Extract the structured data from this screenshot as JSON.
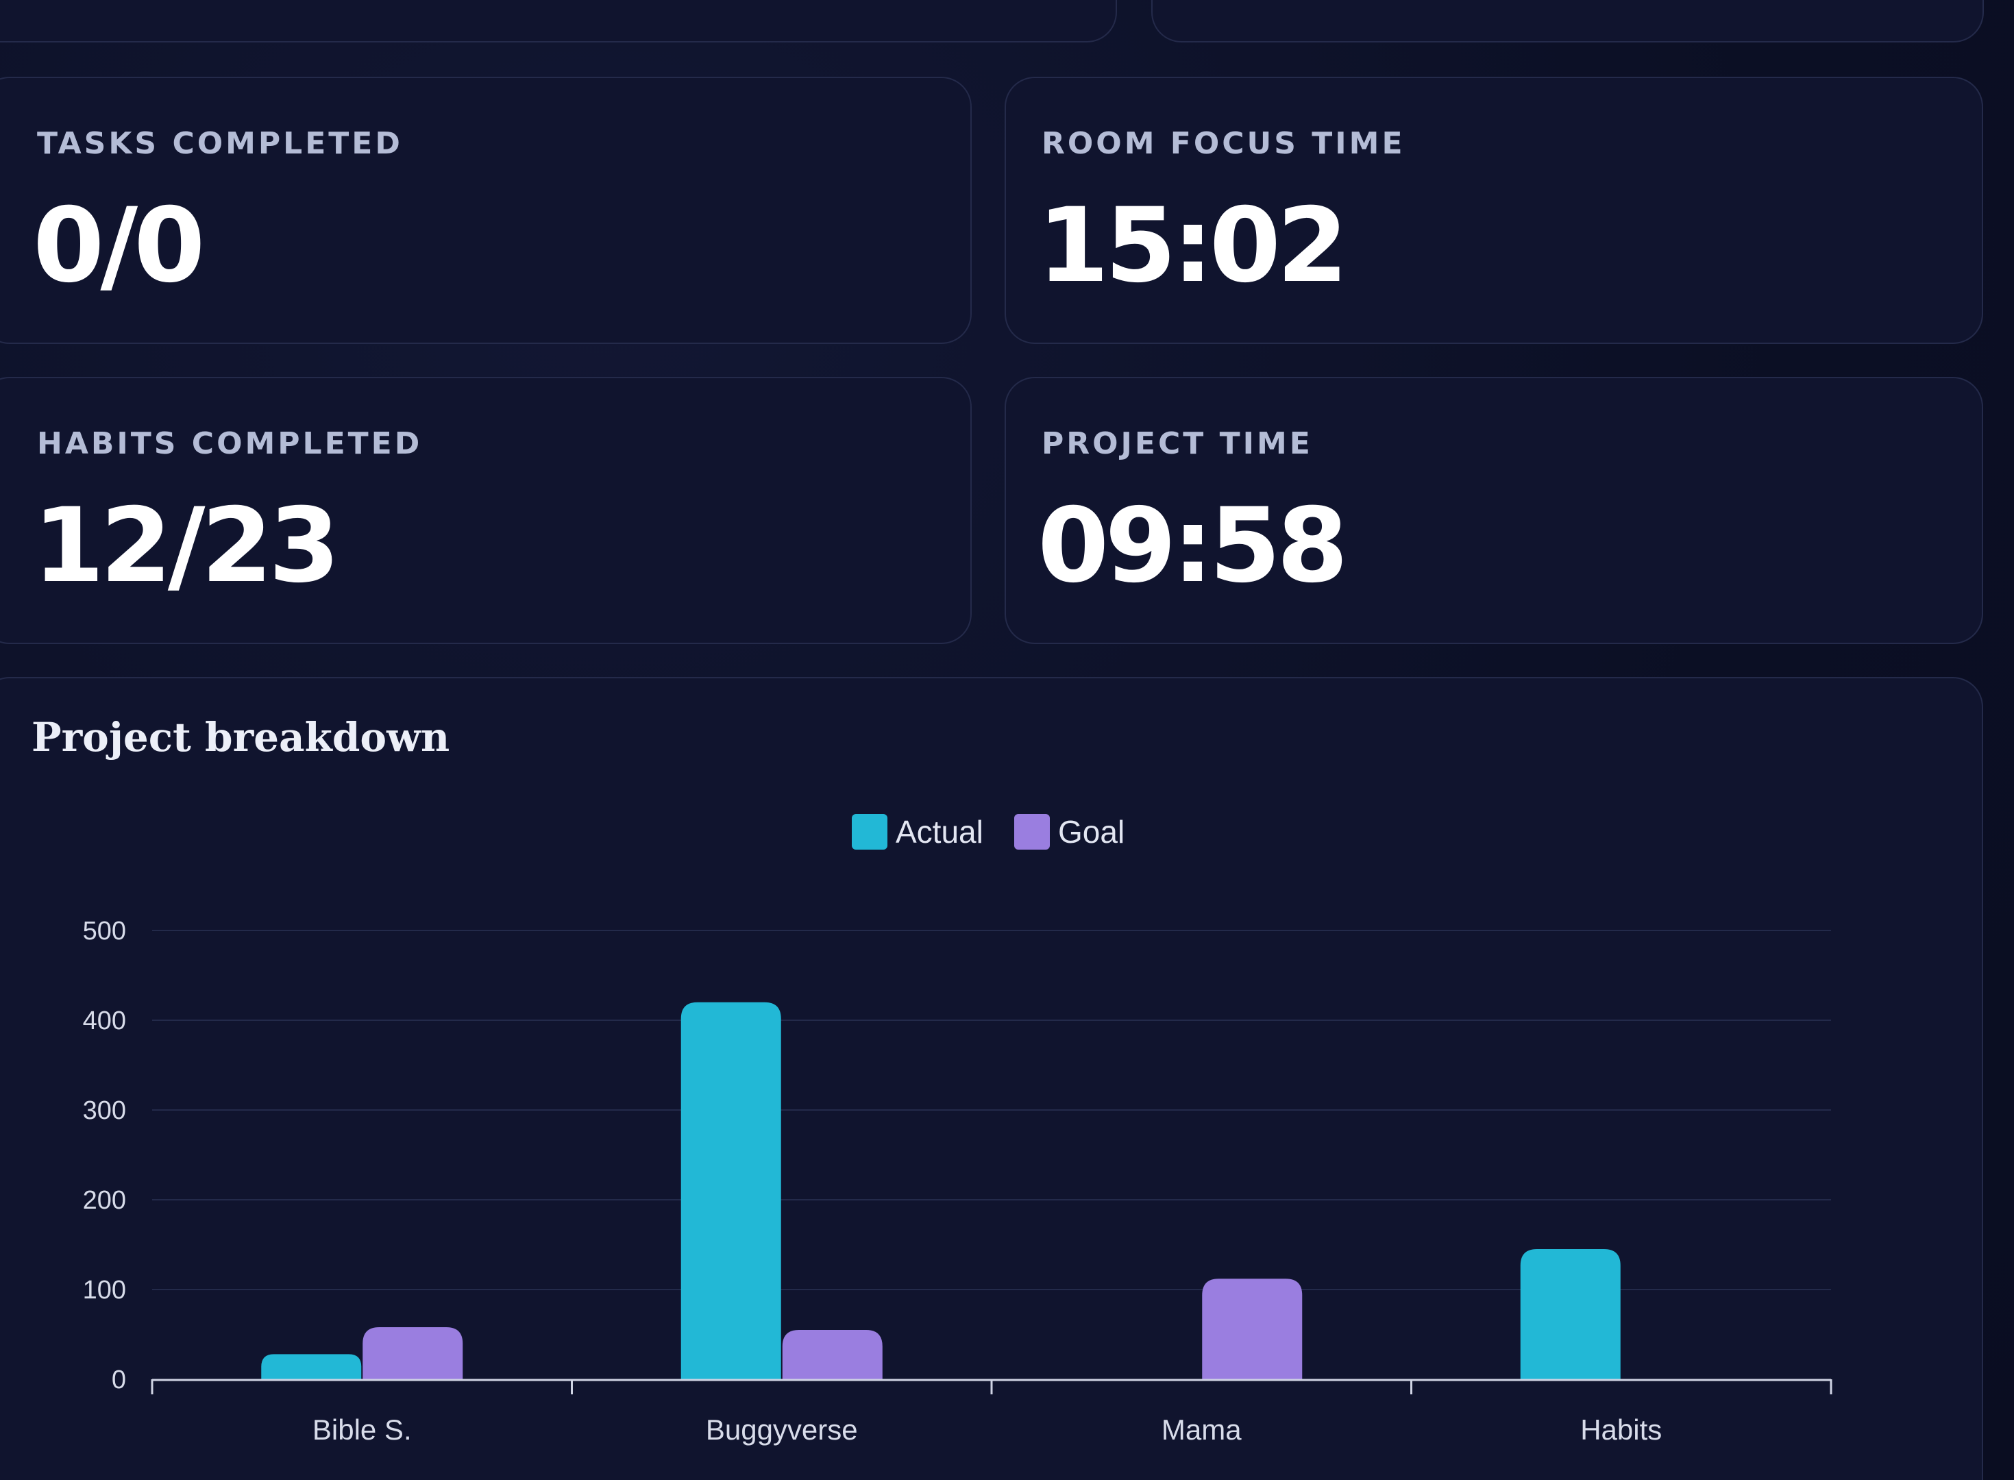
{
  "stats": [
    {
      "label": "TASKS COMPLETED",
      "value": "0/0"
    },
    {
      "label": "ROOM FOCUS TIME",
      "value": "15:02"
    },
    {
      "label": "HABITS COMPLETED",
      "value": "12/23"
    },
    {
      "label": "PROJECT TIME",
      "value": "09:58"
    }
  ],
  "chart": {
    "title": "Project breakdown"
  },
  "colors": {
    "actual": "#22b8d6",
    "goal": "#9a7ee0",
    "background": "#0b0f24",
    "card": "#10142e"
  },
  "chart_data": {
    "type": "bar",
    "title": "Project breakdown",
    "categories": [
      "Bible S.",
      "Buggyverse",
      "Mama",
      "Habits"
    ],
    "series": [
      {
        "name": "Actual",
        "values": [
          28,
          420,
          0,
          145
        ]
      },
      {
        "name": "Goal",
        "values": [
          58,
          55,
          112,
          0
        ]
      }
    ],
    "yticks": [
      0,
      100,
      200,
      300,
      400,
      500
    ],
    "ylim": [
      0,
      500
    ],
    "grid": true,
    "legend": "top-center"
  }
}
